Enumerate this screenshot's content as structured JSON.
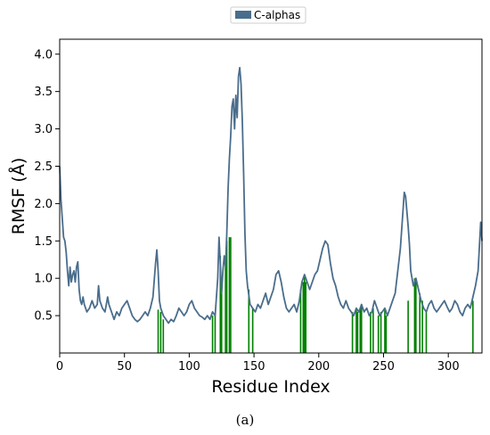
{
  "chart_data": {
    "type": "line",
    "title": "",
    "xlabel": "Residue Index",
    "ylabel": "RMSF (Å)",
    "xlim": [
      0,
      326
    ],
    "ylim": [
      0.0,
      4.2
    ],
    "x_ticks": [
      0,
      50,
      100,
      150,
      200,
      250,
      300
    ],
    "y_ticks": [
      0.5,
      1.0,
      1.5,
      2.0,
      2.5,
      3.0,
      3.5,
      4.0
    ],
    "x_tick_labels": [
      "0",
      "50",
      "100",
      "150",
      "200",
      "250",
      "300"
    ],
    "y_tick_labels": [
      "0.5",
      "1.0",
      "1.5",
      "2.0",
      "2.5",
      "3.0",
      "3.5",
      "4.0"
    ],
    "grid": false,
    "legend": {
      "position": "top-center",
      "entries": [
        "C-alphas"
      ]
    },
    "series": [
      {
        "name": "C-alphas",
        "color": "#4a6d8c",
        "points": [
          [
            0,
            2.5
          ],
          [
            1,
            2.05
          ],
          [
            2,
            1.8
          ],
          [
            3,
            1.55
          ],
          [
            4,
            1.5
          ],
          [
            5,
            1.35
          ],
          [
            6,
            1.1
          ],
          [
            7,
            0.9
          ],
          [
            8,
            1.15
          ],
          [
            9,
            0.95
          ],
          [
            10,
            1.05
          ],
          [
            11,
            1.1
          ],
          [
            12,
            0.95
          ],
          [
            13,
            1.15
          ],
          [
            14,
            1.22
          ],
          [
            15,
            0.85
          ],
          [
            16,
            0.7
          ],
          [
            17,
            0.65
          ],
          [
            18,
            0.75
          ],
          [
            19,
            0.65
          ],
          [
            20,
            0.6
          ],
          [
            21,
            0.55
          ],
          [
            23,
            0.6
          ],
          [
            25,
            0.7
          ],
          [
            27,
            0.6
          ],
          [
            29,
            0.65
          ],
          [
            30,
            0.9
          ],
          [
            31,
            0.7
          ],
          [
            33,
            0.6
          ],
          [
            35,
            0.55
          ],
          [
            37,
            0.75
          ],
          [
            38,
            0.65
          ],
          [
            40,
            0.55
          ],
          [
            42,
            0.45
          ],
          [
            44,
            0.55
          ],
          [
            46,
            0.5
          ],
          [
            48,
            0.6
          ],
          [
            50,
            0.65
          ],
          [
            52,
            0.7
          ],
          [
            54,
            0.6
          ],
          [
            56,
            0.5
          ],
          [
            58,
            0.45
          ],
          [
            60,
            0.42
          ],
          [
            62,
            0.45
          ],
          [
            64,
            0.5
          ],
          [
            66,
            0.55
          ],
          [
            68,
            0.5
          ],
          [
            70,
            0.6
          ],
          [
            72,
            0.75
          ],
          [
            74,
            1.2
          ],
          [
            75,
            1.38
          ],
          [
            76,
            1.1
          ],
          [
            77,
            0.7
          ],
          [
            78,
            0.6
          ],
          [
            80,
            0.5
          ],
          [
            82,
            0.45
          ],
          [
            84,
            0.4
          ],
          [
            86,
            0.45
          ],
          [
            88,
            0.42
          ],
          [
            90,
            0.5
          ],
          [
            92,
            0.6
          ],
          [
            94,
            0.55
          ],
          [
            96,
            0.5
          ],
          [
            98,
            0.55
          ],
          [
            100,
            0.65
          ],
          [
            102,
            0.7
          ],
          [
            104,
            0.6
          ],
          [
            106,
            0.55
          ],
          [
            108,
            0.5
          ],
          [
            110,
            0.48
          ],
          [
            112,
            0.45
          ],
          [
            114,
            0.5
          ],
          [
            116,
            0.45
          ],
          [
            118,
            0.55
          ],
          [
            120,
            0.5
          ],
          [
            121,
            0.75
          ],
          [
            122,
            1.0
          ],
          [
            123,
            1.55
          ],
          [
            124,
            1.2
          ],
          [
            125,
            0.8
          ],
          [
            126,
            1.1
          ],
          [
            127,
            1.3
          ],
          [
            128,
            1.15
          ],
          [
            129,
            1.6
          ],
          [
            130,
            2.2
          ],
          [
            131,
            2.6
          ],
          [
            132,
            2.9
          ],
          [
            133,
            3.3
          ],
          [
            134,
            3.4
          ],
          [
            135,
            3.0
          ],
          [
            136,
            3.45
          ],
          [
            137,
            3.15
          ],
          [
            138,
            3.7
          ],
          [
            139,
            3.82
          ],
          [
            140,
            3.6
          ],
          [
            141,
            3.1
          ],
          [
            142,
            2.4
          ],
          [
            143,
            1.6
          ],
          [
            144,
            1.1
          ],
          [
            145,
            0.9
          ],
          [
            147,
            0.65
          ],
          [
            149,
            0.6
          ],
          [
            151,
            0.55
          ],
          [
            153,
            0.65
          ],
          [
            155,
            0.6
          ],
          [
            157,
            0.7
          ],
          [
            159,
            0.8
          ],
          [
            161,
            0.65
          ],
          [
            163,
            0.75
          ],
          [
            165,
            0.85
          ],
          [
            167,
            1.05
          ],
          [
            169,
            1.1
          ],
          [
            171,
            0.95
          ],
          [
            173,
            0.75
          ],
          [
            175,
            0.6
          ],
          [
            177,
            0.55
          ],
          [
            179,
            0.6
          ],
          [
            181,
            0.65
          ],
          [
            183,
            0.55
          ],
          [
            185,
            0.7
          ],
          [
            187,
            0.95
          ],
          [
            189,
            1.05
          ],
          [
            191,
            0.95
          ],
          [
            193,
            0.85
          ],
          [
            195,
            0.95
          ],
          [
            197,
            1.05
          ],
          [
            199,
            1.1
          ],
          [
            201,
            1.25
          ],
          [
            203,
            1.4
          ],
          [
            205,
            1.5
          ],
          [
            207,
            1.45
          ],
          [
            209,
            1.2
          ],
          [
            211,
            1.0
          ],
          [
            213,
            0.9
          ],
          [
            215,
            0.75
          ],
          [
            217,
            0.65
          ],
          [
            219,
            0.6
          ],
          [
            221,
            0.7
          ],
          [
            223,
            0.6
          ],
          [
            225,
            0.55
          ],
          [
            227,
            0.5
          ],
          [
            229,
            0.6
          ],
          [
            231,
            0.55
          ],
          [
            233,
            0.65
          ],
          [
            235,
            0.55
          ],
          [
            237,
            0.6
          ],
          [
            239,
            0.5
          ],
          [
            241,
            0.55
          ],
          [
            243,
            0.7
          ],
          [
            245,
            0.6
          ],
          [
            247,
            0.5
          ],
          [
            249,
            0.55
          ],
          [
            251,
            0.6
          ],
          [
            253,
            0.5
          ],
          [
            255,
            0.6
          ],
          [
            257,
            0.7
          ],
          [
            259,
            0.8
          ],
          [
            261,
            1.1
          ],
          [
            263,
            1.4
          ],
          [
            265,
            1.9
          ],
          [
            266,
            2.15
          ],
          [
            267,
            2.1
          ],
          [
            268,
            1.9
          ],
          [
            269,
            1.7
          ],
          [
            270,
            1.45
          ],
          [
            271,
            1.1
          ],
          [
            273,
            0.9
          ],
          [
            275,
            1.0
          ],
          [
            277,
            0.85
          ],
          [
            279,
            0.7
          ],
          [
            281,
            0.6
          ],
          [
            283,
            0.55
          ],
          [
            285,
            0.65
          ],
          [
            287,
            0.7
          ],
          [
            289,
            0.6
          ],
          [
            291,
            0.55
          ],
          [
            293,
            0.6
          ],
          [
            295,
            0.65
          ],
          [
            297,
            0.7
          ],
          [
            299,
            0.62
          ],
          [
            301,
            0.55
          ],
          [
            303,
            0.6
          ],
          [
            305,
            0.7
          ],
          [
            307,
            0.65
          ],
          [
            309,
            0.55
          ],
          [
            311,
            0.5
          ],
          [
            313,
            0.6
          ],
          [
            315,
            0.65
          ],
          [
            317,
            0.6
          ],
          [
            319,
            0.75
          ],
          [
            321,
            0.9
          ],
          [
            323,
            1.1
          ],
          [
            325,
            1.75
          ],
          [
            326,
            1.5
          ]
        ]
      },
      {
        "name": "",
        "color": "#008000",
        "type": "bar",
        "bars": [
          [
            76,
            0.58
          ],
          [
            78,
            0.55
          ],
          [
            80,
            0.45
          ],
          [
            118,
            0.5
          ],
          [
            120,
            0.5
          ],
          [
            124,
            1.3
          ],
          [
            125,
            0.8
          ],
          [
            128,
            1.15
          ],
          [
            129,
            1.5
          ],
          [
            131,
            1.55
          ],
          [
            132,
            1.55
          ],
          [
            146,
            0.85
          ],
          [
            149,
            0.6
          ],
          [
            186,
            0.85
          ],
          [
            188,
            0.95
          ],
          [
            189,
            1.05
          ],
          [
            190,
            0.95
          ],
          [
            226,
            0.55
          ],
          [
            229,
            0.6
          ],
          [
            230,
            0.55
          ],
          [
            232,
            0.6
          ],
          [
            233,
            0.65
          ],
          [
            240,
            0.55
          ],
          [
            242,
            0.6
          ],
          [
            246,
            0.5
          ],
          [
            248,
            0.55
          ],
          [
            251,
            0.6
          ],
          [
            252,
            0.5
          ],
          [
            269,
            0.7
          ],
          [
            274,
            1.0
          ],
          [
            275,
            1.0
          ],
          [
            278,
            0.8
          ],
          [
            280,
            0.7
          ],
          [
            283,
            0.55
          ],
          [
            319,
            0.7
          ]
        ]
      }
    ]
  },
  "caption": "(a)"
}
